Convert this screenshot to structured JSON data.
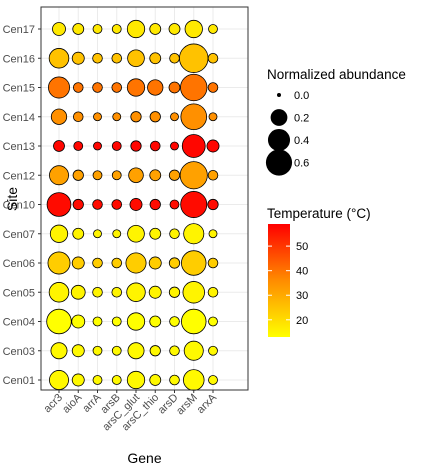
{
  "chart_data": {
    "type": "scatter",
    "subtype": "bubble",
    "xlabel": "Gene",
    "ylabel": "Site",
    "x_categories": [
      "acr3",
      "aioA",
      "arrA",
      "arsB",
      "arsC_glut",
      "arsC_thio",
      "arsD",
      "arsM",
      "arxA"
    ],
    "y_categories": [
      "Cen01",
      "Cen03",
      "Cen04",
      "Cen05",
      "Cen06",
      "Cen07",
      "Cen10",
      "Cen12",
      "Cen13",
      "Cen14",
      "Cen15",
      "Cen16",
      "Cen17"
    ],
    "grid": true,
    "size_legend": {
      "title": "Normalized abundance",
      "breaks": [
        0.0,
        0.2,
        0.4,
        0.6
      ],
      "labels": [
        "0.0",
        "0.2",
        "0.4",
        "0.6"
      ]
    },
    "color_legend": {
      "title": "Temperature (°C)",
      "range": [
        13,
        59
      ],
      "breaks": [
        20,
        30,
        40,
        50
      ],
      "labels": [
        "20",
        "30",
        "40",
        "50"
      ],
      "low_color": "#FFFF00",
      "high_color": "#FF0000"
    },
    "rows": [
      {
        "site": "Cen01",
        "temperature": 14,
        "abundance": [
          0.28,
          0.08,
          0.03,
          0.03,
          0.22,
          0.06,
          0.04,
          0.34,
          0.03
        ]
      },
      {
        "site": "Cen03",
        "temperature": 14,
        "abundance": [
          0.18,
          0.08,
          0.03,
          0.03,
          0.18,
          0.05,
          0.04,
          0.28,
          0.03
        ]
      },
      {
        "site": "Cen04",
        "temperature": 13,
        "abundance": [
          0.52,
          0.1,
          0.03,
          0.03,
          0.22,
          0.06,
          0.04,
          0.52,
          0.03
        ]
      },
      {
        "site": "Cen05",
        "temperature": 15,
        "abundance": [
          0.3,
          0.12,
          0.04,
          0.04,
          0.26,
          0.08,
          0.05,
          0.38,
          0.04
        ]
      },
      {
        "site": "Cen06",
        "temperature": 22,
        "abundance": [
          0.4,
          0.08,
          0.04,
          0.04,
          0.32,
          0.08,
          0.05,
          0.52,
          0.04
        ]
      },
      {
        "site": "Cen07",
        "temperature": 15,
        "abundance": [
          0.22,
          0.06,
          0.02,
          0.02,
          0.2,
          0.06,
          0.04,
          0.32,
          0.02
        ]
      },
      {
        "site": "Cen10",
        "temperature": 57,
        "abundance": [
          0.48,
          0.05,
          0.04,
          0.04,
          0.08,
          0.05,
          0.03,
          0.6,
          0.05
        ]
      },
      {
        "site": "Cen12",
        "temperature": 30,
        "abundance": [
          0.28,
          0.05,
          0.03,
          0.03,
          0.14,
          0.06,
          0.05,
          0.66,
          0.04
        ]
      },
      {
        "site": "Cen13",
        "temperature": 58,
        "abundance": [
          0.06,
          0.03,
          0.02,
          0.03,
          0.05,
          0.04,
          0.02,
          0.44,
          0.08
        ]
      },
      {
        "site": "Cen14",
        "temperature": 33,
        "abundance": [
          0.16,
          0.04,
          0.02,
          0.02,
          0.05,
          0.05,
          0.02,
          0.58,
          0.02
        ]
      },
      {
        "site": "Cen15",
        "temperature": 38,
        "abundance": [
          0.36,
          0.04,
          0.04,
          0.04,
          0.22,
          0.16,
          0.06,
          0.62,
          0.04
        ]
      },
      {
        "site": "Cen16",
        "temperature": 24,
        "abundance": [
          0.3,
          0.08,
          0.04,
          0.04,
          0.2,
          0.06,
          0.04,
          0.74,
          0.04
        ]
      },
      {
        "site": "Cen17",
        "temperature": 17,
        "abundance": [
          0.1,
          0.06,
          0.03,
          0.03,
          0.22,
          0.06,
          0.06,
          0.22,
          0.03
        ]
      }
    ]
  }
}
